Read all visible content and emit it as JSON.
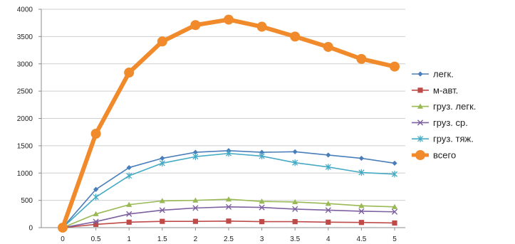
{
  "chart_data": {
    "type": "line",
    "title": "",
    "xlabel": "",
    "ylabel": "",
    "x": [
      0,
      0.5,
      1,
      1.5,
      2,
      2.5,
      3,
      3.5,
      4,
      4.5,
      5
    ],
    "x_tick_labels": [
      "0",
      "0.5",
      "1",
      "1.5",
      "2",
      "2.5",
      "3",
      "3.5",
      "4",
      "4.5",
      "5"
    ],
    "ylim": [
      0,
      4000
    ],
    "y_ticks": [
      0,
      500,
      1000,
      1500,
      2000,
      2500,
      3000,
      3500,
      4000
    ],
    "grid": "horizontal",
    "legend_position": "right",
    "series": [
      {
        "name": "легк.",
        "color": "#4A7EBB",
        "marker": "diamond",
        "values": [
          0,
          700,
          1100,
          1270,
          1380,
          1410,
          1380,
          1390,
          1330,
          1270,
          1180
        ]
      },
      {
        "name": "м-авт.",
        "color": "#BE4B48",
        "marker": "square",
        "values": [
          0,
          60,
          100,
          115,
          115,
          120,
          110,
          110,
          100,
          95,
          85
        ]
      },
      {
        "name": "груз. легк.",
        "color": "#98B954",
        "marker": "triangle",
        "values": [
          0,
          250,
          420,
          490,
          500,
          520,
          480,
          470,
          440,
          400,
          380
        ]
      },
      {
        "name": "груз. ср.",
        "color": "#7D60A0",
        "marker": "x",
        "values": [
          0,
          110,
          250,
          320,
          360,
          380,
          370,
          340,
          320,
          300,
          290
        ]
      },
      {
        "name": "груз. тяж.",
        "color": "#46AAC5",
        "marker": "star",
        "values": [
          0,
          560,
          950,
          1180,
          1300,
          1360,
          1310,
          1190,
          1110,
          1010,
          980
        ]
      },
      {
        "name": "всего",
        "color": "#F08A2A",
        "marker": "circle",
        "values": [
          0,
          1720,
          2840,
          3410,
          3710,
          3810,
          3680,
          3500,
          3310,
          3090,
          2950
        ]
      }
    ]
  }
}
